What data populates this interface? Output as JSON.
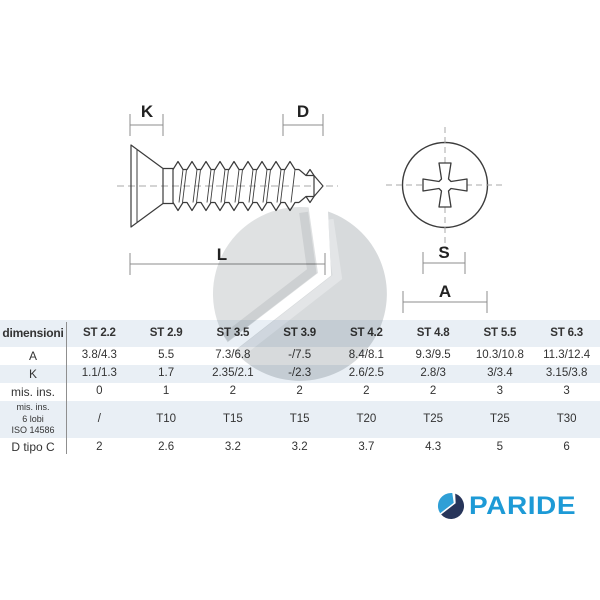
{
  "drawing": {
    "labels": {
      "k": "K",
      "d": "D",
      "l": "L",
      "s": "S",
      "a": "A"
    }
  },
  "table": {
    "header": {
      "label": "dimensioni",
      "columns": [
        "ST 2.2",
        "ST 2.9",
        "ST 3.5",
        "ST 3.9",
        "ST 4.2",
        "ST 4.8",
        "ST 5.5",
        "ST 6.3"
      ]
    },
    "rows": [
      {
        "label": "A",
        "cells": [
          "3.8/4.3",
          "5.5",
          "7.3/6.8",
          "-/7.5",
          "8.4/8.1",
          "9.3/9.5",
          "10.3/10.8",
          "11.3/12.4"
        ]
      },
      {
        "label": "K",
        "cells": [
          "1.1/1.3",
          "1.7",
          "2.35/2.1",
          "-/2.3",
          "2.6/2.5",
          "2.8/3",
          "3/3.4",
          "3.15/3.8"
        ]
      },
      {
        "label": "mis. ins.",
        "cells": [
          "0",
          "1",
          "2",
          "2",
          "2",
          "2",
          "3",
          "3"
        ]
      },
      {
        "label": "mis. ins.\n6 lobi\nISO 14586",
        "cells": [
          "/",
          "T10",
          "T15",
          "T15",
          "T20",
          "T25",
          "T25",
          "T30"
        ]
      },
      {
        "label": "D tipo C",
        "cells": [
          "2",
          "2.6",
          "3.2",
          "3.2",
          "3.7",
          "4.3",
          "5",
          "6"
        ]
      }
    ]
  },
  "logo": {
    "text": "PARIDE"
  },
  "colors": {
    "logo_blue": "#1d9ad6",
    "logo_light_blue": "#2f9fd6",
    "logo_navy": "#27355a",
    "stripe": "#e9eff5",
    "line": "#3b3b3b"
  }
}
